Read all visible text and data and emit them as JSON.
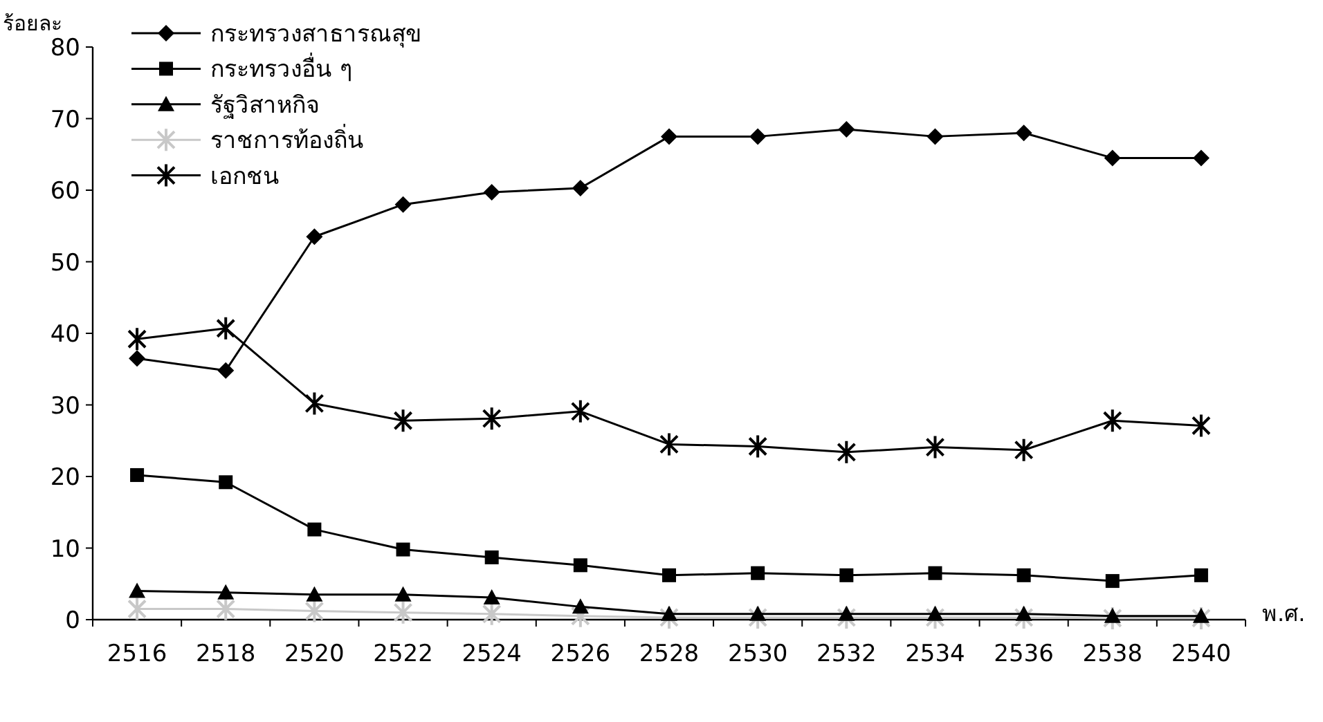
{
  "chart_data": {
    "type": "line",
    "ylabel": "ร้อยละ",
    "xlabel": "พ.ศ.",
    "categories": [
      "2516",
      "2518",
      "2520",
      "2522",
      "2524",
      "2526",
      "2528",
      "2530",
      "2532",
      "2534",
      "2536",
      "2538",
      "2540"
    ],
    "ylim": [
      0,
      80
    ],
    "yticks": [
      0,
      10,
      20,
      30,
      40,
      50,
      60,
      70,
      80
    ],
    "grid": false,
    "legend": "top left",
    "series": [
      {
        "name": "กระทรวงสาธารณสุข",
        "color": "#000000",
        "marker": "diamond",
        "values": [
          36.5,
          34.8,
          53.5,
          58,
          59.7,
          60.3,
          67.5,
          67.5,
          68.5,
          67.5,
          68,
          64.5,
          64.5
        ]
      },
      {
        "name": "กระทรวงอื่น ๆ",
        "color": "#000000",
        "marker": "square",
        "values": [
          20.2,
          19.2,
          12.6,
          9.8,
          8.7,
          7.6,
          6.2,
          6.5,
          6.2,
          6.5,
          6.2,
          5.4,
          6.2
        ]
      },
      {
        "name": "รัฐวิสาหกิจ",
        "color": "#000000",
        "marker": "triangle",
        "values": [
          4,
          3.8,
          3.5,
          3.5,
          3.1,
          1.8,
          0.8,
          0.8,
          0.8,
          0.8,
          0.8,
          0.5,
          0.5
        ]
      },
      {
        "name": "ราชการท้องถิ่น",
        "color": "#c8c8c8",
        "marker": "cross",
        "values": [
          1.5,
          1.5,
          1.2,
          1,
          0.8,
          0.5,
          0.3,
          0.3,
          0.3,
          0.3,
          0.3,
          0.2,
          0.2
        ]
      },
      {
        "name": "เอกชน",
        "color": "#000000",
        "marker": "cross",
        "values": [
          39.2,
          40.7,
          30.2,
          27.8,
          28.1,
          29.1,
          24.5,
          24.2,
          23.4,
          24.1,
          23.7,
          27.8,
          27.1
        ]
      }
    ]
  }
}
